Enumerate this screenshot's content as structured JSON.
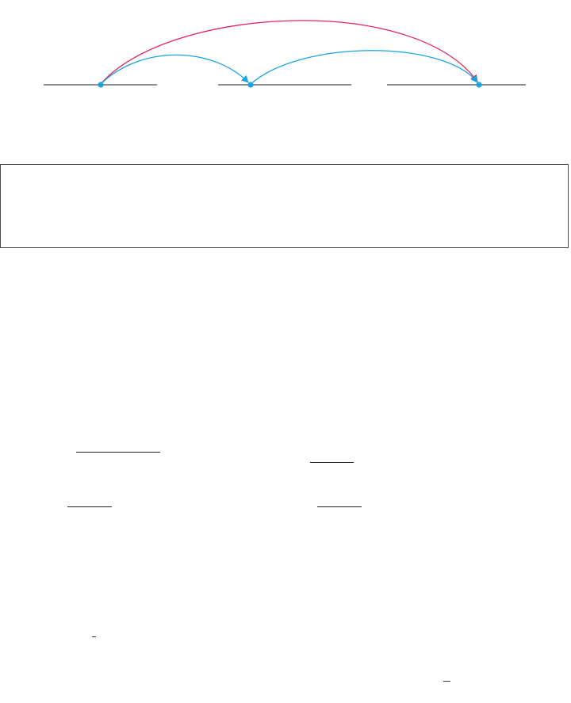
{
  "diagram": {
    "colors": {
      "segment": "#6b6b6b",
      "point": "#1aa3e0",
      "short_arc": "#1aa3e0",
      "long_arc": "#e3235a"
    },
    "segments": [
      {
        "id": "segment-1"
      },
      {
        "id": "segment-2"
      },
      {
        "id": "segment-3"
      }
    ],
    "points": [
      {
        "id": "point-1"
      },
      {
        "id": "point-2"
      },
      {
        "id": "point-3"
      }
    ],
    "arcs": [
      {
        "id": "arc-1-to-2",
        "from": "point-1",
        "to": "point-2",
        "color_key": "short_arc"
      },
      {
        "id": "arc-2-to-3",
        "from": "point-2",
        "to": "point-3",
        "color_key": "short_arc"
      },
      {
        "id": "arc-1-to-3",
        "from": "point-1",
        "to": "point-3",
        "color_key": "long_arc"
      }
    ]
  },
  "text_box": {},
  "fraction_bars": 6,
  "overline_marks": 2
}
